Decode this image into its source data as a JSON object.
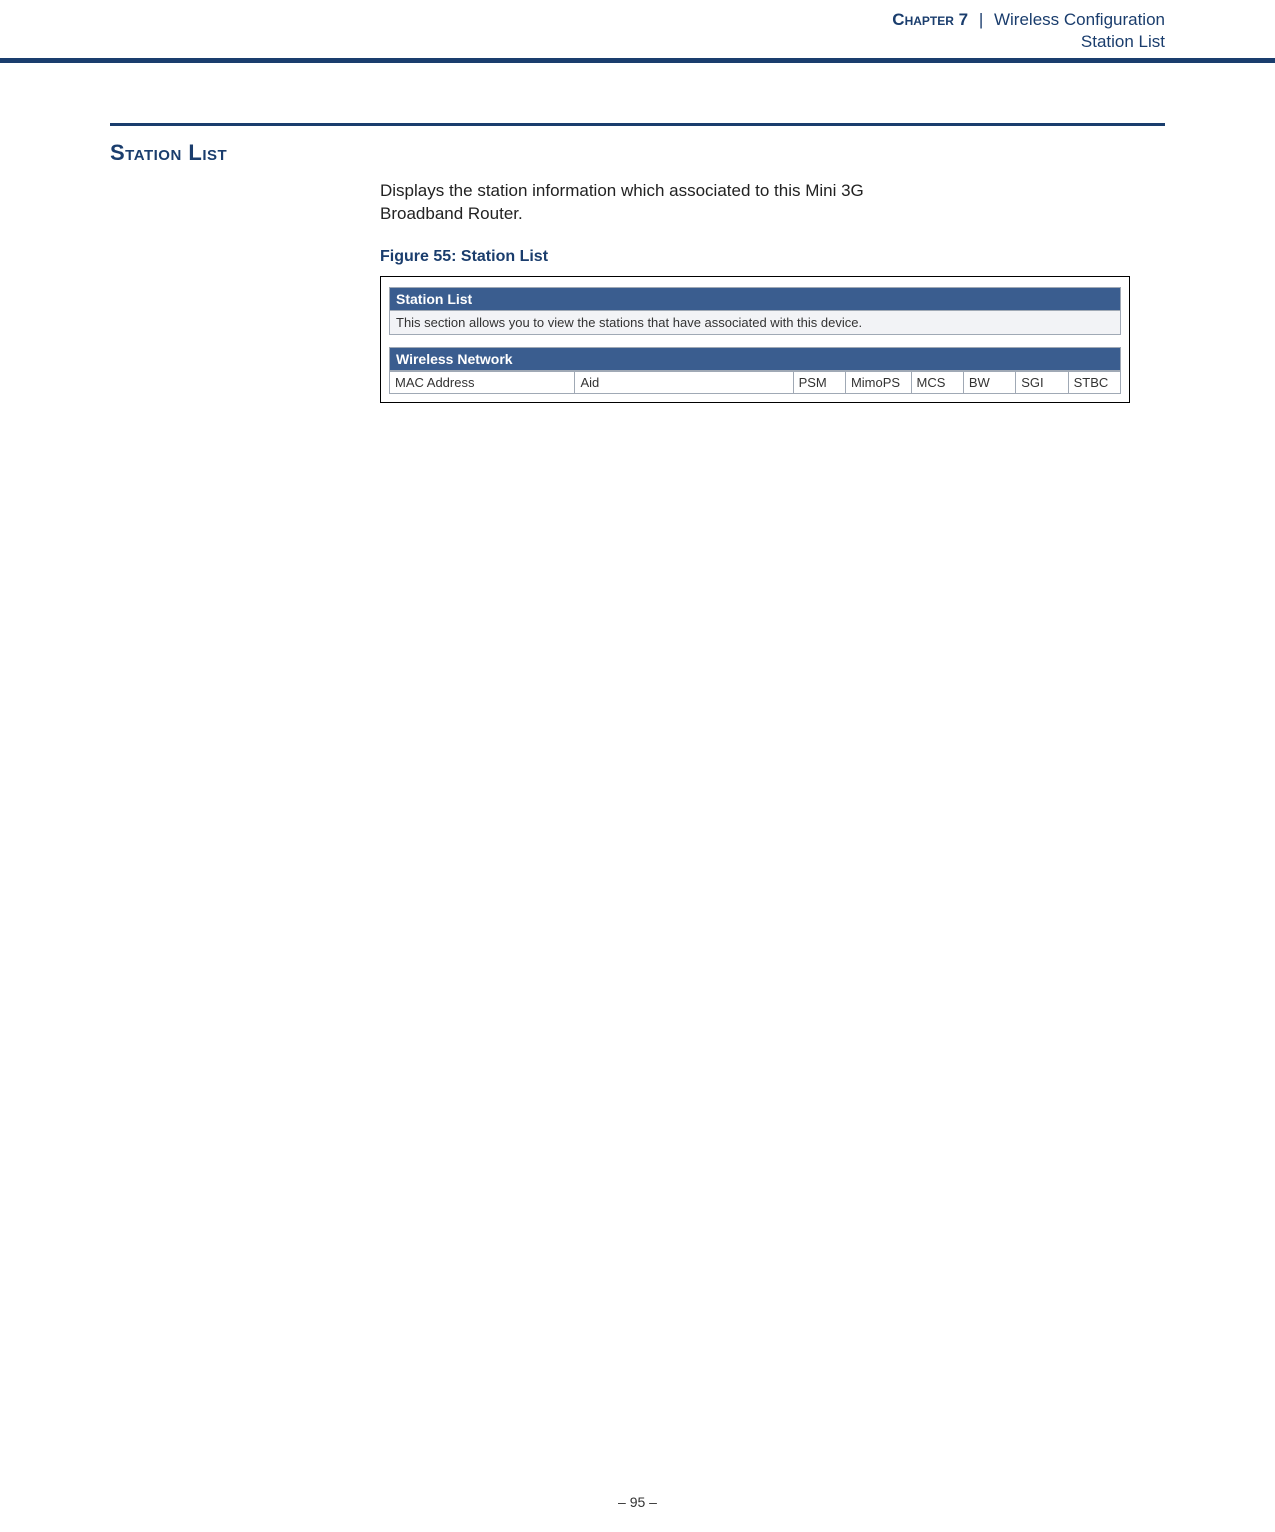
{
  "header": {
    "chapter_label": "Chapter 7",
    "separator": "|",
    "chapter_title": "Wireless Configuration",
    "sub_title": "Station List"
  },
  "section": {
    "heading": "Station List",
    "body_text": "Displays the station information which associated to this Mini 3G Broadband Router.",
    "figure_caption": "Figure 55:  Station List"
  },
  "screenshot": {
    "panel1_title": "Station List",
    "panel1_desc": "This section allows you to view the stations that have associated with this device.",
    "panel2_title": "Wireless Network",
    "columns": [
      "MAC Address",
      "Aid",
      "PSM",
      "MimoPS",
      "MCS",
      "BW",
      "SGI",
      "STBC"
    ],
    "title_bg": "#3a5d8f",
    "title_fg": "#ffffff",
    "desc_bg": "#f2f3f6",
    "border_color": "#a0a9b5"
  },
  "footer": {
    "page_number": "–  95  –"
  },
  "colors": {
    "brand_blue": "#1a3d6d",
    "text_black": "#222222"
  }
}
